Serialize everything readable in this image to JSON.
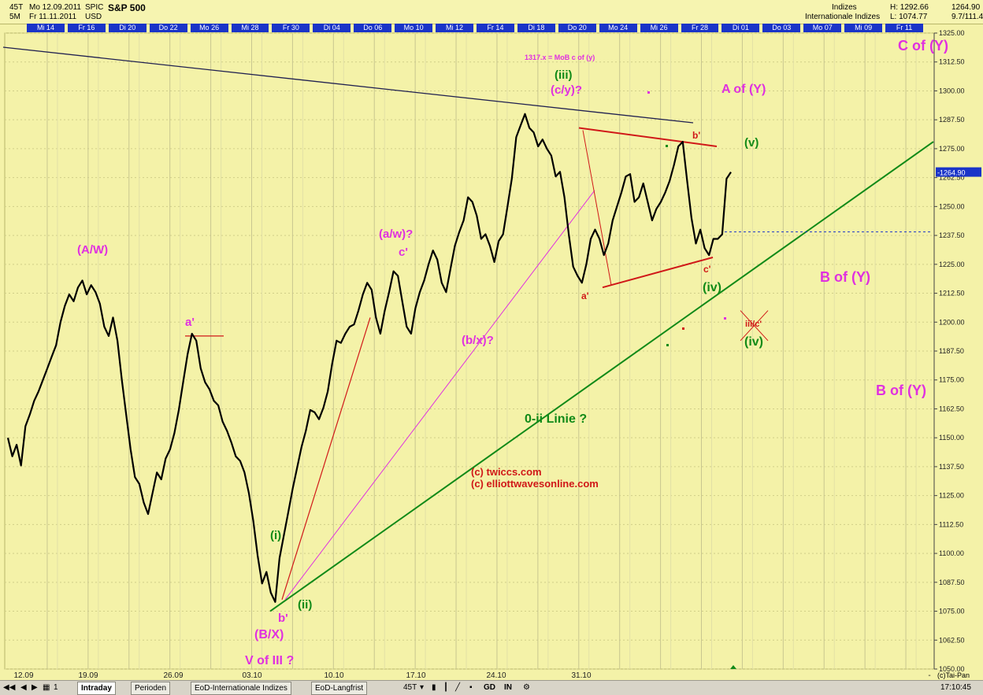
{
  "header": {
    "interval_top": "45T",
    "interval_bottom": "5M",
    "date_line1": "Mo 12.09.2011",
    "date_line2": "Fr 11.11.2011",
    "symbol": "SPIC",
    "currency": "USD",
    "title": "S&P 500",
    "group": "Indizes",
    "exchange": "Internationale Indizes",
    "high_label": "H: 1292.66",
    "low_label": "L: 1074.77",
    "last_value": "1264.90",
    "last_sub": "9.7/111.40"
  },
  "top_dates": [
    "Mi 14",
    "Fr 16",
    "Di 20",
    "Do 22",
    "Mo 26",
    "Mi 28",
    "Fr 30",
    "Di 04",
    "Do 06",
    "Mo 10",
    "Mi 12",
    "Fr 14",
    "Di 18",
    "Do 20",
    "Mo 24",
    "Mi 26",
    "Fr 28",
    "Di 01",
    "Do 03",
    "Mo 07",
    "Mi 09",
    "Fr 11"
  ],
  "chart_data": {
    "type": "line",
    "title": "S&P 500",
    "ylim": [
      1050,
      1325
    ],
    "grid": true,
    "yticks": [
      1325,
      1312.5,
      1300,
      1287.5,
      1275,
      1262.5,
      1250,
      1237.5,
      1225,
      1212.5,
      1200,
      1187.5,
      1175,
      1162.5,
      1150,
      1137.5,
      1125,
      1112.5,
      1100,
      1087.5,
      1075,
      1062.5,
      1050
    ],
    "ytick_labels": [
      "1325.00",
      "1312.50",
      "1300.00",
      "1287.50",
      "1275.00",
      "1262.50",
      "1250.00",
      "1237.50",
      "1225.00",
      "1212.50",
      "1200.00",
      "1187.50",
      "1175.00",
      "1162.50",
      "1150.00",
      "1137.50",
      "1125.00",
      "1112.50",
      "1100.00",
      "1087.50",
      "1075.00",
      "1062.50",
      "1050.00"
    ],
    "xtick_labels": [
      "12.09",
      "19.09",
      "26.09",
      "03.10",
      "10.10",
      "17.10",
      "24.10",
      "31.10",
      "-"
    ],
    "series": [
      {
        "values": [
          1150,
          1142,
          1147,
          1138,
          1155,
          1160,
          1166,
          1170,
          1175,
          1180,
          1185,
          1190,
          1200,
          1207,
          1212,
          1209,
          1215,
          1218,
          1212,
          1216,
          1213,
          1208,
          1198,
          1194,
          1202,
          1192,
          1175,
          1160,
          1145,
          1133,
          1130,
          1122,
          1117,
          1126,
          1135,
          1132,
          1141,
          1145,
          1152,
          1162,
          1174,
          1186,
          1195,
          1192,
          1180,
          1174,
          1171,
          1166,
          1164,
          1157,
          1153,
          1148,
          1142,
          1140,
          1135,
          1126,
          1114,
          1099,
          1087,
          1092,
          1083,
          1079,
          1098,
          1108,
          1118,
          1128,
          1137,
          1146,
          1153,
          1162,
          1161,
          1158,
          1163,
          1170,
          1182,
          1192,
          1191,
          1195,
          1198,
          1199,
          1205,
          1212,
          1217,
          1214,
          1202,
          1195,
          1205,
          1213,
          1222,
          1220,
          1209,
          1198,
          1195,
          1206,
          1213,
          1218,
          1225,
          1231,
          1227,
          1217,
          1213,
          1223,
          1233,
          1239,
          1244,
          1254,
          1252,
          1246,
          1236,
          1238,
          1233,
          1226,
          1235,
          1238,
          1250,
          1262,
          1280,
          1285,
          1290,
          1284,
          1282,
          1276,
          1279,
          1275,
          1272,
          1263,
          1265,
          1254,
          1238,
          1224,
          1220,
          1217,
          1225,
          1236,
          1240,
          1236,
          1229,
          1234,
          1244,
          1250,
          1256,
          1263,
          1264,
          1252,
          1254,
          1260,
          1252,
          1244,
          1249,
          1252,
          1256,
          1261,
          1268,
          1276,
          1278,
          1261,
          1245,
          1234,
          1240,
          1232,
          1229,
          1236,
          1236,
          1238,
          1262,
          1264.9
        ],
        "color": "#000000"
      }
    ],
    "high": 1292.66,
    "low": 1074.77,
    "last": 1264.9,
    "annotations": [
      {
        "text": "C of (Y)"
      },
      {
        "text": "1317.x = MoB c of (y)"
      },
      {
        "text": "(iii)"
      },
      {
        "text": "(c/y)?"
      },
      {
        "text": "A of (Y)"
      },
      {
        "text": "b'"
      },
      {
        "text": "(v)"
      },
      {
        "text": "(A/W)"
      },
      {
        "text": "(a/w)?"
      },
      {
        "text": "c'"
      },
      {
        "text": "a'"
      },
      {
        "text": "a'"
      },
      {
        "text": "c'"
      },
      {
        "text": "(iv)"
      },
      {
        "text": "B of (Y)"
      },
      {
        "text": "iii/c'"
      },
      {
        "text": "(iv)"
      },
      {
        "text": "(b/x)?"
      },
      {
        "text": "B of (Y)"
      },
      {
        "text": "0-ii Linie ?"
      },
      {
        "text": "(c) twiccs.com"
      },
      {
        "text": "(c) elliottwavesonline.com"
      },
      {
        "text": "(i)"
      },
      {
        "text": "(ii)"
      },
      {
        "text": "b'"
      },
      {
        "text": "(B/X)"
      },
      {
        "text": "V of III ?"
      }
    ]
  },
  "footer": {
    "tabs": [
      "Intraday",
      "Perioden",
      "EoD-Internationale Indizes",
      "EoD-Langfrist"
    ],
    "interval": "45T",
    "buttons": [
      "GD",
      "IN"
    ],
    "copyright": "(c)Tai-Pan",
    "clock": "17:10:45",
    "page": "1"
  },
  "colors": {
    "background": "#f4f2a8",
    "magenta": "#e030e0",
    "green": "#118a18",
    "red": "#d01818",
    "navy": "#202050"
  }
}
